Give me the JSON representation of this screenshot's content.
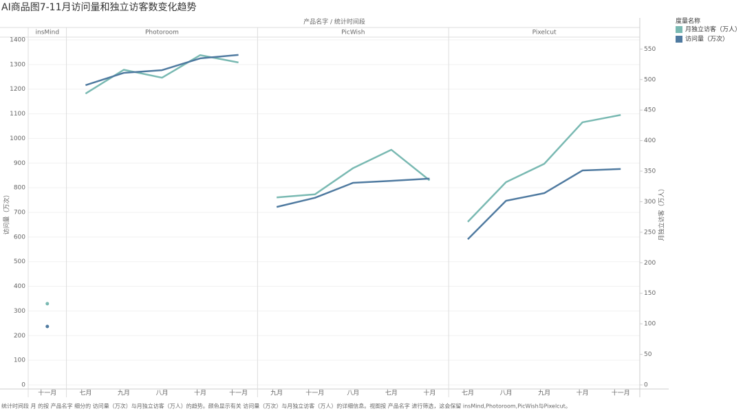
{
  "chart_data": {
    "type": "line",
    "title": "AI商品图7-11月访问量和独立访客数变化趋势",
    "header": "产品名字 / 统计时间段",
    "ylabel": "访问量（万次）",
    "y2label": "月独立访客（万人）",
    "legend_title": "度量名称",
    "series": [
      {
        "name": "月独立访客（万人）",
        "color": "#79b9b2",
        "axis": "y2"
      },
      {
        "name": "访问量（万次）",
        "color": "#4f7aa0",
        "axis": "y"
      }
    ],
    "panels": [
      {
        "name": "insMind",
        "categories": [
          "十一月"
        ],
        "values": [
          [
            133
          ],
          [
            237
          ]
        ]
      },
      {
        "name": "Photoroom",
        "categories": [
          "七月",
          "九月",
          "八月",
          "十月",
          "十一月"
        ],
        "values": [
          [
            477,
            516,
            503,
            540,
            528
          ],
          [
            1216,
            1266,
            1277,
            1325,
            1339
          ]
        ]
      },
      {
        "name": "PicWish",
        "categories": [
          "九月",
          "十一月",
          "八月",
          "七月",
          "十月"
        ],
        "values": [
          [
            307,
            312,
            355,
            385,
            335
          ],
          [
            722,
            759,
            820,
            828,
            837
          ]
        ]
      },
      {
        "name": "Pixelcut",
        "categories": [
          "七月",
          "八月",
          "九月",
          "十月",
          "十一月"
        ],
        "values": [
          [
            267,
            332,
            362,
            430,
            442
          ],
          [
            591,
            747,
            778,
            870,
            876
          ]
        ]
      }
    ],
    "ylim": [
      0,
      1400
    ],
    "yticks": [
      0,
      100,
      200,
      300,
      400,
      500,
      600,
      700,
      800,
      900,
      1000,
      1100,
      1200,
      1300,
      1400
    ],
    "y2lim": [
      0,
      565
    ],
    "y2ticks": [
      0,
      50,
      100,
      150,
      200,
      250,
      300,
      350,
      400,
      450,
      500,
      550
    ],
    "grid": true,
    "note": "统计时间段 月 的按 产品名字 细分的 访问量（万次）与月独立访客（万人）的趋势。颜色显示有关 访问量（万次）与月独立访客（万人）的详细信息。视图按 产品名字 进行筛选，这会保留 insMind,Photoroom,PicWish与Pixelcut。"
  }
}
